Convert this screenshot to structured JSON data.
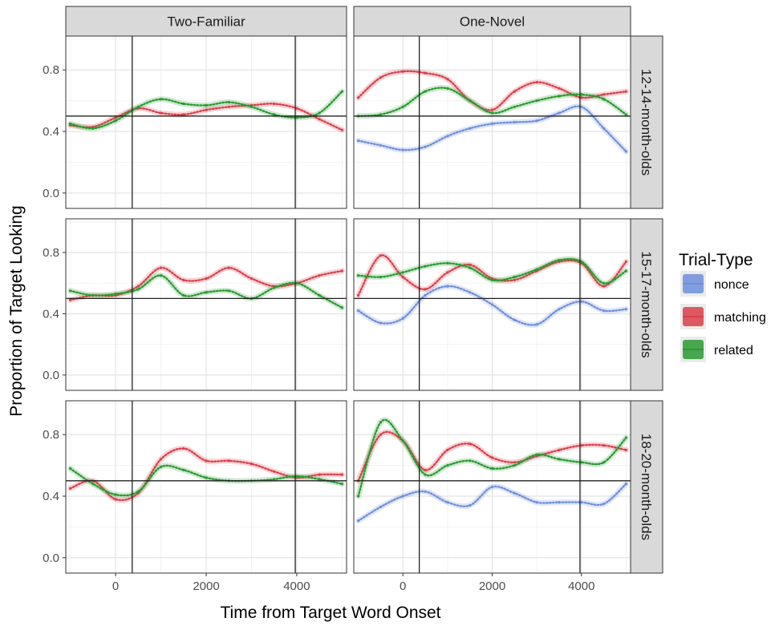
{
  "chart_data": {
    "type": "line",
    "xlabel": "Time from Target Word Onset",
    "ylabel": "Proportion of Target Looking",
    "xlim": [
      -1100,
      5100
    ],
    "ylim": [
      -0.1,
      1.02
    ],
    "x_ticks": [
      0,
      2000,
      4000
    ],
    "x_tick_labels": [
      "0",
      "2000",
      "4000"
    ],
    "y_ticks": [
      0.0,
      0.4,
      0.8
    ],
    "y_tick_labels": [
      "0.0",
      "0.4",
      "0.8"
    ],
    "reference_lines": {
      "hline": 0.5,
      "vlines": [
        367,
        3967
      ]
    },
    "grid": true,
    "columns": [
      "Two-Familiar",
      "One-Novel"
    ],
    "rows": [
      "12-14-month-olds",
      "15-17-month-olds",
      "18-20-month-olds"
    ],
    "legend": {
      "title": "Trial-Type",
      "position": "right",
      "items": [
        {
          "label": "nonce",
          "color": "#6f8fdc"
        },
        {
          "label": "matching",
          "color": "#d9404a"
        },
        {
          "label": "related",
          "color": "#2a9a32"
        }
      ]
    },
    "x": [
      -1000,
      -500,
      0,
      500,
      1000,
      1500,
      2000,
      2500,
      3000,
      3500,
      4000,
      4500,
      5000
    ],
    "panels": [
      {
        "row": "12-14-month-olds",
        "column": "Two-Familiar",
        "series": [
          {
            "name": "matching",
            "values": [
              0.44,
              0.43,
              0.49,
              0.55,
              0.52,
              0.51,
              0.54,
              0.56,
              0.57,
              0.58,
              0.55,
              0.48,
              0.41
            ]
          },
          {
            "name": "related",
            "values": [
              0.45,
              0.42,
              0.47,
              0.56,
              0.61,
              0.58,
              0.57,
              0.59,
              0.56,
              0.51,
              0.49,
              0.52,
              0.66
            ]
          }
        ]
      },
      {
        "row": "12-14-month-olds",
        "column": "One-Novel",
        "series": [
          {
            "name": "nonce",
            "values": [
              0.34,
              0.31,
              0.28,
              0.3,
              0.37,
              0.42,
              0.45,
              0.46,
              0.47,
              0.52,
              0.56,
              0.42,
              0.27
            ]
          },
          {
            "name": "matching",
            "values": [
              0.62,
              0.75,
              0.79,
              0.78,
              0.74,
              0.6,
              0.54,
              0.66,
              0.72,
              0.68,
              0.62,
              0.64,
              0.66
            ]
          },
          {
            "name": "related",
            "values": [
              0.5,
              0.51,
              0.56,
              0.66,
              0.68,
              0.6,
              0.52,
              0.56,
              0.6,
              0.63,
              0.64,
              0.61,
              0.51
            ]
          }
        ]
      },
      {
        "row": "15-17-month-olds",
        "column": "Two-Familiar",
        "series": [
          {
            "name": "matching",
            "values": [
              0.49,
              0.52,
              0.52,
              0.58,
              0.7,
              0.62,
              0.63,
              0.7,
              0.63,
              0.58,
              0.6,
              0.65,
              0.68
            ]
          },
          {
            "name": "related",
            "values": [
              0.55,
              0.52,
              0.53,
              0.56,
              0.65,
              0.52,
              0.54,
              0.55,
              0.5,
              0.57,
              0.6,
              0.52,
              0.44
            ]
          }
        ]
      },
      {
        "row": "15-17-month-olds",
        "column": "One-Novel",
        "series": [
          {
            "name": "nonce",
            "values": [
              0.42,
              0.34,
              0.37,
              0.52,
              0.58,
              0.54,
              0.46,
              0.36,
              0.33,
              0.43,
              0.48,
              0.42,
              0.43
            ]
          },
          {
            "name": "matching",
            "values": [
              0.52,
              0.78,
              0.64,
              0.56,
              0.67,
              0.72,
              0.63,
              0.62,
              0.68,
              0.74,
              0.73,
              0.58,
              0.74
            ]
          },
          {
            "name": "related",
            "values": [
              0.65,
              0.64,
              0.67,
              0.71,
              0.73,
              0.7,
              0.62,
              0.64,
              0.69,
              0.75,
              0.74,
              0.6,
              0.68
            ]
          }
        ]
      },
      {
        "row": "18-20-month-olds",
        "column": "Two-Familiar",
        "series": [
          {
            "name": "matching",
            "values": [
              0.45,
              0.5,
              0.38,
              0.42,
              0.64,
              0.71,
              0.63,
              0.63,
              0.61,
              0.56,
              0.52,
              0.54,
              0.54
            ]
          },
          {
            "name": "related",
            "values": [
              0.58,
              0.48,
              0.41,
              0.43,
              0.59,
              0.57,
              0.52,
              0.5,
              0.5,
              0.51,
              0.53,
              0.51,
              0.48
            ]
          }
        ]
      },
      {
        "row": "18-20-month-olds",
        "column": "One-Novel",
        "series": [
          {
            "name": "nonce",
            "values": [
              0.24,
              0.33,
              0.4,
              0.43,
              0.36,
              0.34,
              0.46,
              0.42,
              0.36,
              0.36,
              0.36,
              0.35,
              0.48
            ]
          },
          {
            "name": "matching",
            "values": [
              0.5,
              0.8,
              0.76,
              0.57,
              0.7,
              0.74,
              0.65,
              0.62,
              0.66,
              0.7,
              0.73,
              0.73,
              0.7
            ]
          },
          {
            "name": "related",
            "values": [
              0.4,
              0.88,
              0.76,
              0.54,
              0.6,
              0.63,
              0.58,
              0.6,
              0.67,
              0.64,
              0.62,
              0.62,
              0.78
            ]
          }
        ]
      }
    ]
  }
}
